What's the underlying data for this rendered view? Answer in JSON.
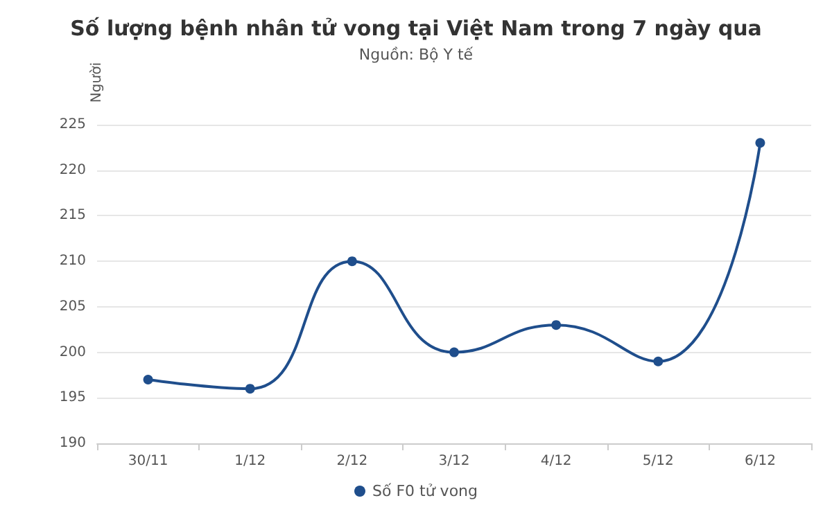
{
  "chart_data": {
    "type": "line",
    "title": "Số lượng bệnh nhân tử vong tại Việt Nam trong 7 ngày qua",
    "subtitle": "Nguồn: Bộ Y tế",
    "ylabel": "Người",
    "categories": [
      "30/11",
      "1/12",
      "2/12",
      "3/12",
      "4/12",
      "5/12",
      "6/12"
    ],
    "series": [
      {
        "name": "Số F0 tử vong",
        "color": "#1f4e8c",
        "values": [
          197,
          196,
          210,
          200,
          203,
          199,
          223
        ]
      }
    ],
    "ylim": [
      190,
      225
    ],
    "yticks": [
      190,
      195,
      200,
      205,
      210,
      215,
      220,
      225
    ],
    "grid": "y",
    "legend": "bottom",
    "marker": "circle",
    "line_style": "solid"
  }
}
